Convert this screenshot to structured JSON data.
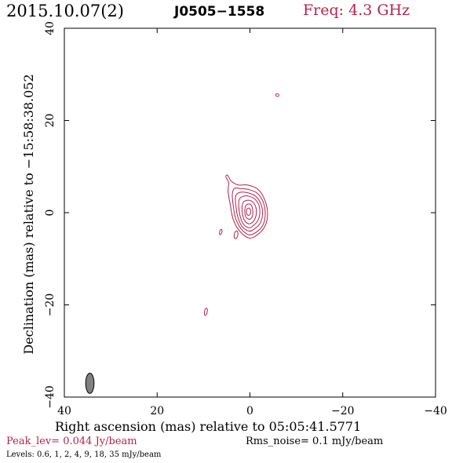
{
  "header": {
    "date": "2015.10.07(2)",
    "source": "J0505−1558",
    "freq": "Freq: 4.3 GHz"
  },
  "footer": {
    "xlabel": "Right ascension (mas) relative to 05:05:41.5771",
    "peak_label": "Peak_lev=",
    "peak_value": "0.044 Jy/beam",
    "rms_label": "Rms_noise=",
    "rms_value": "0.1 mJy/beam",
    "levels_label": "Levels:",
    "levels_values": "0.6,   1,   2,   4,   9,  18,  35 mJy/beam"
  },
  "colors": {
    "contour": "#b5234b",
    "beam": "#808080",
    "axis": "#000000"
  },
  "chart_data": {
    "type": "contour",
    "xlabel": "Right ascension (mas) relative to 05:05:41.5771",
    "ylabel": "Declination (mas) relative to −15:58:38.052",
    "xlim": [
      40,
      -40
    ],
    "ylim": [
      -40,
      40
    ],
    "x_ticks": [
      40,
      20,
      0,
      -20,
      -40
    ],
    "y_ticks": [
      -40,
      -20,
      0,
      20,
      40
    ],
    "x_tick_labels": [
      "40",
      "20",
      "0",
      "−20",
      "−40"
    ],
    "y_tick_labels": [
      "−40",
      "−20",
      "0",
      "20",
      "40"
    ],
    "contour_levels_mJy": [
      0.6,
      1,
      2,
      4,
      9,
      18,
      35
    ],
    "core": {
      "center": [
        0.3,
        0.3
      ],
      "contours": [
        {
          "level": 0.6,
          "points": [
            [
              0.2,
              -5.5
            ],
            [
              2.2,
              -4.0
            ],
            [
              3.6,
              -1.5
            ],
            [
              4.2,
              1.5
            ],
            [
              4.7,
              4.5
            ],
            [
              4.6,
              6.5
            ],
            [
              5.2,
              7.8
            ],
            [
              4.8,
              8.1
            ],
            [
              4.0,
              6.8
            ],
            [
              2.5,
              6.0
            ],
            [
              0.5,
              6.0
            ],
            [
              -1.8,
              5.0
            ],
            [
              -3.3,
              2.5
            ],
            [
              -3.8,
              -0.5
            ],
            [
              -3.2,
              -3.0
            ],
            [
              -1.6,
              -4.8
            ]
          ]
        },
        {
          "level": 1,
          "points": [
            [
              0.2,
              -4.8
            ],
            [
              1.9,
              -3.5
            ],
            [
              3.1,
              -1.2
            ],
            [
              3.6,
              1.5
            ],
            [
              3.8,
              4.0
            ],
            [
              3.3,
              5.3
            ],
            [
              1.8,
              5.2
            ],
            [
              0.2,
              5.0
            ],
            [
              -1.6,
              4.2
            ],
            [
              -2.9,
              2.2
            ],
            [
              -3.3,
              -0.4
            ],
            [
              -2.8,
              -2.7
            ],
            [
              -1.4,
              -4.2
            ]
          ]
        },
        {
          "level": 2,
          "points": [
            [
              0.2,
              -4.0
            ],
            [
              1.7,
              -3.0
            ],
            [
              2.6,
              -1.0
            ],
            [
              3.0,
              1.3
            ],
            [
              3.1,
              3.5
            ],
            [
              2.2,
              4.4
            ],
            [
              0.4,
              4.3
            ],
            [
              -1.3,
              3.5
            ],
            [
              -2.4,
              1.8
            ],
            [
              -2.7,
              -0.4
            ],
            [
              -2.2,
              -2.3
            ],
            [
              -1.0,
              -3.5
            ]
          ]
        },
        {
          "level": 4,
          "points": [
            [
              0.2,
              -3.3
            ],
            [
              1.4,
              -2.5
            ],
            [
              2.1,
              -0.8
            ],
            [
              2.4,
              1.2
            ],
            [
              2.3,
              2.9
            ],
            [
              1.3,
              3.6
            ],
            [
              0.0,
              3.5
            ],
            [
              -1.2,
              2.8
            ],
            [
              -2.0,
              1.4
            ],
            [
              -2.1,
              -0.4
            ],
            [
              -1.6,
              -1.9
            ],
            [
              -0.6,
              -2.9
            ]
          ]
        },
        {
          "level": 9,
          "points": [
            [
              0.3,
              -2.4
            ],
            [
              1.1,
              -1.8
            ],
            [
              1.6,
              -0.4
            ],
            [
              1.7,
              1.1
            ],
            [
              1.4,
              2.3
            ],
            [
              0.5,
              2.7
            ],
            [
              -0.5,
              2.4
            ],
            [
              -1.2,
              1.4
            ],
            [
              -1.4,
              0.1
            ],
            [
              -1.1,
              -1.3
            ],
            [
              -0.4,
              -2.2
            ]
          ]
        },
        {
          "level": 18,
          "points": [
            [
              0.3,
              -1.4
            ],
            [
              0.9,
              -0.9
            ],
            [
              1.1,
              0.3
            ],
            [
              0.9,
              1.5
            ],
            [
              0.3,
              1.9
            ],
            [
              -0.3,
              1.6
            ],
            [
              -0.6,
              0.6
            ],
            [
              -0.6,
              -0.5
            ],
            [
              -0.2,
              -1.3
            ]
          ]
        },
        {
          "level": 35,
          "points": [
            [
              0.3,
              -0.6
            ],
            [
              0.7,
              -0.2
            ],
            [
              0.7,
              0.6
            ],
            [
              0.3,
              1.0
            ],
            [
              -0.1,
              0.7
            ],
            [
              -0.1,
              -0.2
            ]
          ]
        }
      ]
    },
    "features": [
      {
        "center": [
          -5.9,
          25.5
        ],
        "rx": 0.35,
        "ry": 0.3,
        "angle": 30
      },
      {
        "center": [
          6.3,
          -4.2
        ],
        "rx": 0.25,
        "ry": 0.6,
        "angle": 15
      },
      {
        "center": [
          3.0,
          -4.8
        ],
        "rx": 0.4,
        "ry": 0.85,
        "angle": 10
      },
      {
        "center": [
          9.5,
          -21.5
        ],
        "rx": 0.3,
        "ry": 0.8,
        "angle": 10
      }
    ],
    "beam": {
      "center": [
        34.5,
        -37.0
      ],
      "major_mas": 4.4,
      "minor_mas": 1.8,
      "pa_deg": 0
    }
  }
}
